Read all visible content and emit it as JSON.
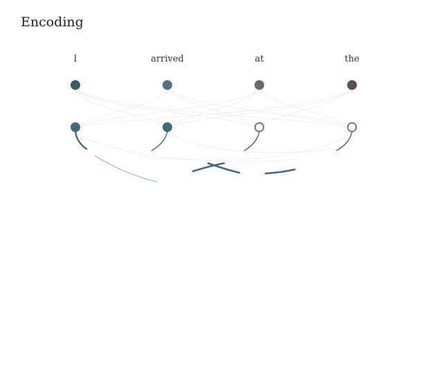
{
  "title": "Encoding",
  "tokens": [
    {
      "word": "I",
      "top_color": "#3d5b6b",
      "bottom_filled": true,
      "bottom_color": "#43697a"
    },
    {
      "word": "arrived",
      "top_color": "#586f7f",
      "bottom_filled": true,
      "bottom_color": "#43697a"
    },
    {
      "word": "at",
      "top_color": "#666b70",
      "bottom_filled": false,
      "bottom_color": "#43697a"
    },
    {
      "word": "the",
      "top_color": "#5e4a58",
      "bottom_filled": false,
      "bottom_color": "#43697a"
    }
  ],
  "colors": {
    "faint_line": "#eceef0",
    "strong_line": "#3f6a7c",
    "light_line": "#9fb8c4"
  }
}
